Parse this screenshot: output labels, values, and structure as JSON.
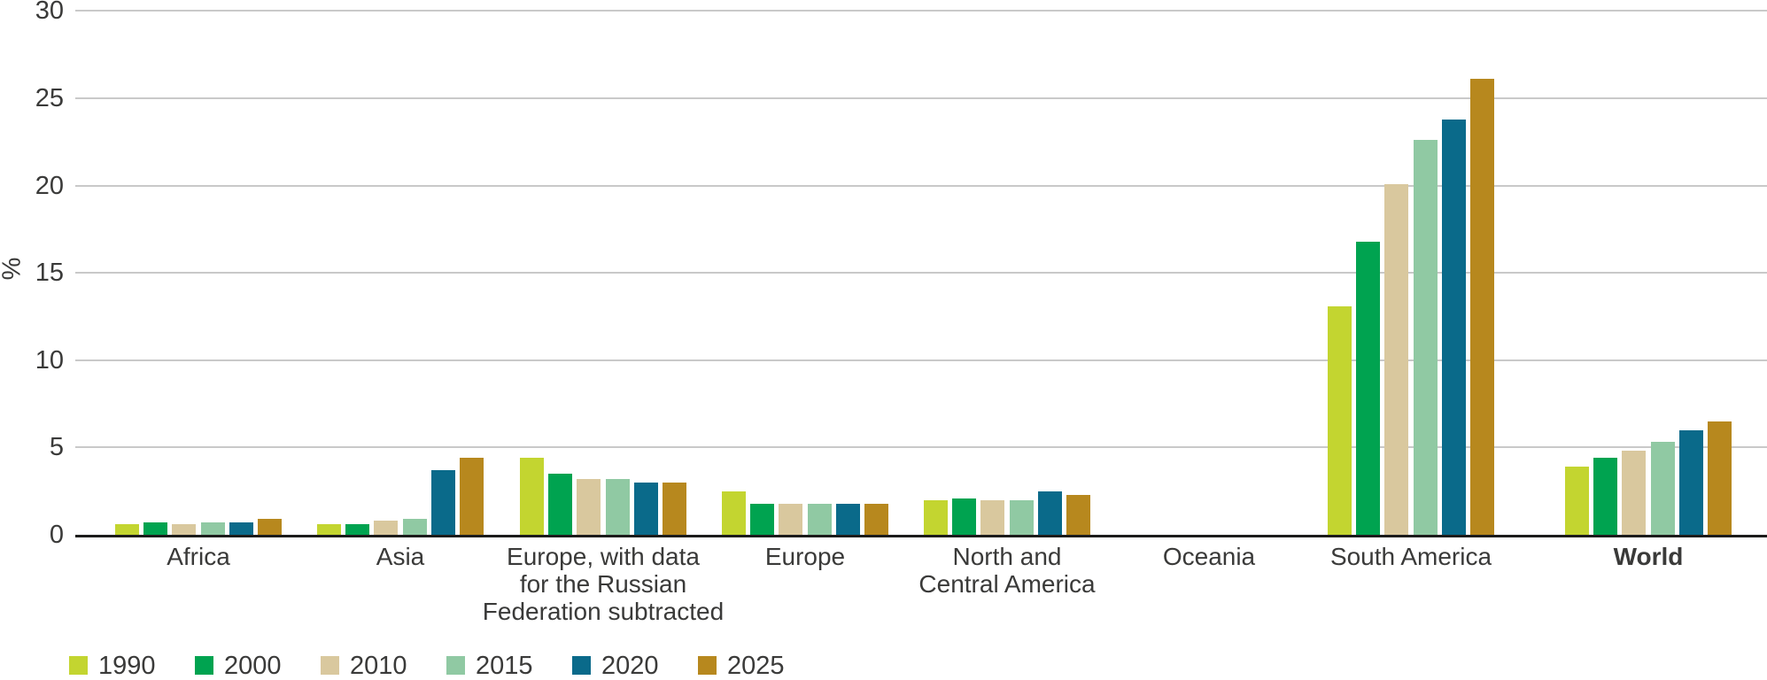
{
  "chart_data": {
    "type": "bar",
    "title": "",
    "xlabel": "",
    "ylabel": "%",
    "ylim": [
      0,
      30
    ],
    "yticks": [
      0,
      5,
      10,
      15,
      20,
      25,
      30
    ],
    "grid": true,
    "legend_position": "bottom-left",
    "categories": [
      {
        "label": "Africa",
        "lines": [
          "Africa"
        ],
        "bold": false
      },
      {
        "label": "Asia",
        "lines": [
          "Asia"
        ],
        "bold": false
      },
      {
        "label": "Europe, with data for the Russian Federation subtracted",
        "lines": [
          "Europe, with data",
          "for the Russian",
          "Federation subtracted"
        ],
        "bold": false
      },
      {
        "label": "Europe",
        "lines": [
          "Europe"
        ],
        "bold": false
      },
      {
        "label": "North and Central America",
        "lines": [
          "North and",
          "Central America"
        ],
        "bold": false
      },
      {
        "label": "Oceania",
        "lines": [
          "Oceania"
        ],
        "bold": false
      },
      {
        "label": "South America",
        "lines": [
          "South America"
        ],
        "bold": false
      },
      {
        "label": "World",
        "lines": [
          "World"
        ],
        "bold": true
      }
    ],
    "series": [
      {
        "name": "1990",
        "color": "#c3d530",
        "values": [
          0.6,
          0.6,
          4.4,
          2.5,
          2.0,
          0,
          13.1,
          3.9
        ]
      },
      {
        "name": "2000",
        "color": "#00a350",
        "values": [
          0.7,
          0.6,
          3.5,
          1.8,
          2.1,
          0,
          16.8,
          4.4
        ]
      },
      {
        "name": "2010",
        "color": "#d9c89e",
        "values": [
          0.6,
          0.8,
          3.2,
          1.8,
          2.0,
          0,
          20.1,
          4.8
        ]
      },
      {
        "name": "2015",
        "color": "#90c9a3",
        "values": [
          0.7,
          0.9,
          3.2,
          1.8,
          2.0,
          0,
          22.6,
          5.3
        ]
      },
      {
        "name": "2020",
        "color": "#0a6a8a",
        "values": [
          0.7,
          3.7,
          3.0,
          1.8,
          2.5,
          0,
          23.8,
          6.0
        ]
      },
      {
        "name": "2025",
        "color": "#b7881e",
        "values": [
          0.9,
          4.4,
          3.0,
          1.8,
          2.3,
          0,
          26.1,
          6.5
        ]
      }
    ]
  }
}
